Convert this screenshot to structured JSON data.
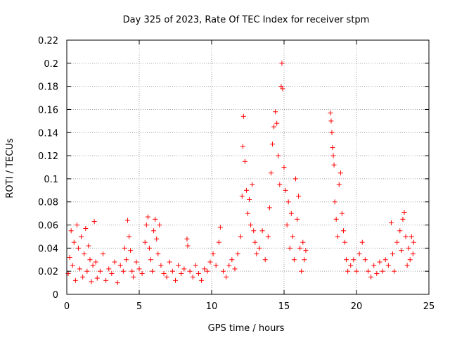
{
  "chart_data": {
    "type": "scatter",
    "title": "Day 325 of 2023, Rate Of TEC Index for receiver stpm",
    "xlabel": "GPS time / hours",
    "ylabel": "ROTI / TECUs",
    "xlim": [
      0,
      25
    ],
    "ylim": [
      0,
      0.22
    ],
    "x_ticks": [
      0,
      5,
      10,
      15,
      20,
      25
    ],
    "y_ticks": [
      0,
      0.02,
      0.04,
      0.06,
      0.08,
      0.1,
      0.12,
      0.14,
      0.16,
      0.18,
      0.2,
      0.22
    ],
    "grid": true,
    "marker": "+",
    "marker_color": "#ff0000",
    "series": [
      {
        "name": "ROTI",
        "points": [
          [
            0.1,
            0.018
          ],
          [
            0.2,
            0.032
          ],
          [
            0.3,
            0.055
          ],
          [
            0.4,
            0.025
          ],
          [
            0.5,
            0.045
          ],
          [
            0.6,
            0.012
          ],
          [
            0.7,
            0.06
          ],
          [
            0.8,
            0.04
          ],
          [
            0.9,
            0.022
          ],
          [
            1.0,
            0.05
          ],
          [
            1.1,
            0.015
          ],
          [
            1.2,
            0.035
          ],
          [
            1.3,
            0.057
          ],
          [
            1.4,
            0.02
          ],
          [
            1.5,
            0.042
          ],
          [
            1.6,
            0.03
          ],
          [
            1.7,
            0.011
          ],
          [
            1.8,
            0.025
          ],
          [
            1.9,
            0.063
          ],
          [
            2.0,
            0.028
          ],
          [
            2.1,
            0.014
          ],
          [
            2.3,
            0.02
          ],
          [
            2.5,
            0.035
          ],
          [
            2.7,
            0.012
          ],
          [
            2.9,
            0.022
          ],
          [
            3.1,
            0.018
          ],
          [
            3.3,
            0.028
          ],
          [
            3.5,
            0.01
          ],
          [
            3.7,
            0.025
          ],
          [
            3.9,
            0.02
          ],
          [
            4.0,
            0.04
          ],
          [
            4.1,
            0.03
          ],
          [
            4.2,
            0.064
          ],
          [
            4.3,
            0.05
          ],
          [
            4.4,
            0.038
          ],
          [
            4.5,
            0.02
          ],
          [
            4.6,
            0.015
          ],
          [
            4.8,
            0.028
          ],
          [
            5.0,
            0.022
          ],
          [
            5.2,
            0.018
          ],
          [
            5.4,
            0.045
          ],
          [
            5.5,
            0.06
          ],
          [
            5.6,
            0.067
          ],
          [
            5.7,
            0.04
          ],
          [
            5.8,
            0.03
          ],
          [
            5.9,
            0.02
          ],
          [
            6.0,
            0.055
          ],
          [
            6.1,
            0.065
          ],
          [
            6.2,
            0.048
          ],
          [
            6.3,
            0.035
          ],
          [
            6.4,
            0.06
          ],
          [
            6.5,
            0.025
          ],
          [
            6.7,
            0.018
          ],
          [
            6.9,
            0.015
          ],
          [
            7.1,
            0.028
          ],
          [
            7.3,
            0.02
          ],
          [
            7.5,
            0.012
          ],
          [
            7.7,
            0.025
          ],
          [
            7.9,
            0.018
          ],
          [
            8.1,
            0.022
          ],
          [
            8.3,
            0.048
          ],
          [
            8.35,
            0.042
          ],
          [
            8.5,
            0.02
          ],
          [
            8.7,
            0.015
          ],
          [
            8.9,
            0.025
          ],
          [
            9.1,
            0.018
          ],
          [
            9.3,
            0.012
          ],
          [
            9.5,
            0.022
          ],
          [
            9.7,
            0.02
          ],
          [
            9.9,
            0.028
          ],
          [
            10.1,
            0.035
          ],
          [
            10.3,
            0.025
          ],
          [
            10.5,
            0.045
          ],
          [
            10.6,
            0.058
          ],
          [
            10.8,
            0.02
          ],
          [
            11.0,
            0.015
          ],
          [
            11.2,
            0.025
          ],
          [
            11.4,
            0.03
          ],
          [
            11.6,
            0.022
          ],
          [
            11.8,
            0.035
          ],
          [
            12.0,
            0.05
          ],
          [
            12.1,
            0.085
          ],
          [
            12.15,
            0.128
          ],
          [
            12.2,
            0.154
          ],
          [
            12.3,
            0.115
          ],
          [
            12.4,
            0.09
          ],
          [
            12.5,
            0.07
          ],
          [
            12.6,
            0.082
          ],
          [
            12.7,
            0.06
          ],
          [
            12.8,
            0.095
          ],
          [
            12.9,
            0.055
          ],
          [
            13.0,
            0.045
          ],
          [
            13.1,
            0.035
          ],
          [
            13.3,
            0.04
          ],
          [
            13.5,
            0.055
          ],
          [
            13.7,
            0.03
          ],
          [
            13.9,
            0.05
          ],
          [
            14.0,
            0.075
          ],
          [
            14.1,
            0.105
          ],
          [
            14.2,
            0.13
          ],
          [
            14.3,
            0.145
          ],
          [
            14.4,
            0.158
          ],
          [
            14.5,
            0.148
          ],
          [
            14.6,
            0.12
          ],
          [
            14.7,
            0.095
          ],
          [
            14.8,
            0.18
          ],
          [
            14.85,
            0.2
          ],
          [
            14.9,
            0.178
          ],
          [
            15.0,
            0.11
          ],
          [
            15.1,
            0.09
          ],
          [
            15.2,
            0.06
          ],
          [
            15.3,
            0.08
          ],
          [
            15.4,
            0.04
          ],
          [
            15.5,
            0.07
          ],
          [
            15.6,
            0.05
          ],
          [
            15.7,
            0.03
          ],
          [
            15.8,
            0.1
          ],
          [
            15.9,
            0.065
          ],
          [
            16.0,
            0.085
          ],
          [
            16.1,
            0.04
          ],
          [
            16.2,
            0.02
          ],
          [
            16.3,
            0.045
          ],
          [
            16.4,
            0.03
          ],
          [
            16.5,
            0.038
          ],
          [
            18.2,
            0.157
          ],
          [
            18.25,
            0.15
          ],
          [
            18.3,
            0.14
          ],
          [
            18.35,
            0.127
          ],
          [
            18.4,
            0.12
          ],
          [
            18.45,
            0.112
          ],
          [
            18.5,
            0.08
          ],
          [
            18.6,
            0.065
          ],
          [
            18.7,
            0.05
          ],
          [
            18.8,
            0.095
          ],
          [
            18.9,
            0.105
          ],
          [
            19.0,
            0.07
          ],
          [
            19.1,
            0.055
          ],
          [
            19.2,
            0.045
          ],
          [
            19.3,
            0.03
          ],
          [
            19.4,
            0.02
          ],
          [
            19.6,
            0.025
          ],
          [
            19.8,
            0.03
          ],
          [
            20.0,
            0.02
          ],
          [
            20.2,
            0.035
          ],
          [
            20.4,
            0.045
          ],
          [
            20.6,
            0.03
          ],
          [
            20.8,
            0.02
          ],
          [
            21.0,
            0.015
          ],
          [
            21.2,
            0.025
          ],
          [
            21.4,
            0.018
          ],
          [
            21.6,
            0.028
          ],
          [
            21.8,
            0.02
          ],
          [
            22.0,
            0.03
          ],
          [
            22.2,
            0.025
          ],
          [
            22.4,
            0.062
          ],
          [
            22.5,
            0.035
          ],
          [
            22.6,
            0.02
          ],
          [
            22.8,
            0.045
          ],
          [
            23.0,
            0.055
          ],
          [
            23.1,
            0.038
          ],
          [
            23.2,
            0.065
          ],
          [
            23.3,
            0.071
          ],
          [
            23.4,
            0.05
          ],
          [
            23.5,
            0.025
          ],
          [
            23.6,
            0.04
          ],
          [
            23.7,
            0.03
          ],
          [
            23.8,
            0.05
          ],
          [
            23.9,
            0.035
          ],
          [
            23.95,
            0.045
          ]
        ]
      }
    ]
  }
}
